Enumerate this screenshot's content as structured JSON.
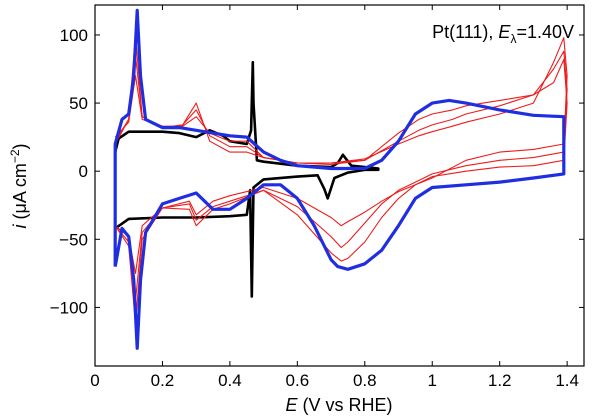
{
  "chart_data": {
    "type": "line",
    "annotation": {
      "prefix": "Pt(111), ",
      "var": "E",
      "sub": "λ",
      "value": "=1.40V"
    },
    "xlabel": {
      "var": "E",
      "rest": " (V vs RHE)"
    },
    "ylabel": {
      "var": "i",
      "rest": " (μA cm",
      "sup": "−2",
      "close": ")"
    },
    "xlim": [
      0,
      1.45
    ],
    "ylim": [
      -143,
      122
    ],
    "xticks": [
      0,
      0.2,
      0.4,
      0.6,
      0.8,
      1,
      1.2,
      1.4
    ],
    "xtick_labels": [
      "0",
      "0.2",
      "0.4",
      "0.6",
      "0.8",
      "1",
      "1.2",
      "1.4"
    ],
    "yticks": [
      -100,
      -50,
      0,
      50,
      100
    ],
    "ytick_labels": [
      "−100",
      "−50",
      "0",
      "50",
      "100"
    ],
    "colors": {
      "black": "#000000",
      "red": "#ee1c1c",
      "blue": "#1f2ee0"
    },
    "grid": false,
    "series": [
      {
        "color": "black",
        "width": 2.6,
        "points": [
          [
            0.06,
            -68
          ],
          [
            0.06,
            -42
          ],
          [
            0.1,
            -35
          ],
          [
            0.2,
            -34
          ],
          [
            0.3,
            -34
          ],
          [
            0.4,
            -33
          ],
          [
            0.45,
            -32
          ],
          [
            0.46,
            -14
          ],
          [
            0.465,
            -92
          ],
          [
            0.47,
            -12
          ],
          [
            0.5,
            -6
          ],
          [
            0.6,
            -4
          ],
          [
            0.66,
            -3
          ],
          [
            0.68,
            -13
          ],
          [
            0.69,
            -20
          ],
          [
            0.71,
            -5
          ],
          [
            0.75,
            -1
          ],
          [
            0.8,
            1
          ],
          [
            0.84,
            1
          ],
          [
            0.84,
            2
          ],
          [
            0.8,
            3
          ],
          [
            0.76,
            4
          ],
          [
            0.735,
            12
          ],
          [
            0.72,
            6
          ],
          [
            0.7,
            3
          ],
          [
            0.6,
            4
          ],
          [
            0.5,
            7
          ],
          [
            0.48,
            8
          ],
          [
            0.47,
            50
          ],
          [
            0.468,
            80
          ],
          [
            0.463,
            30
          ],
          [
            0.45,
            20
          ],
          [
            0.4,
            22
          ],
          [
            0.38,
            26
          ],
          [
            0.34,
            30
          ],
          [
            0.3,
            25
          ],
          [
            0.25,
            28
          ],
          [
            0.2,
            29
          ],
          [
            0.15,
            29
          ],
          [
            0.1,
            29
          ],
          [
            0.07,
            24
          ],
          [
            0.06,
            14
          ],
          [
            0.06,
            -68
          ]
        ]
      },
      {
        "color": "red",
        "width": 1.1,
        "points": [
          [
            0.06,
            25
          ],
          [
            0.1,
            36
          ],
          [
            0.12,
            70
          ],
          [
            0.14,
            38
          ],
          [
            0.2,
            33
          ],
          [
            0.26,
            33
          ],
          [
            0.3,
            40
          ],
          [
            0.34,
            28
          ],
          [
            0.4,
            22
          ],
          [
            0.45,
            22
          ],
          [
            0.5,
            10
          ],
          [
            0.6,
            6
          ],
          [
            0.7,
            6
          ],
          [
            0.8,
            9
          ],
          [
            0.9,
            20
          ],
          [
            0.96,
            26
          ],
          [
            1,
            29
          ],
          [
            1.06,
            33
          ],
          [
            1.1,
            36
          ],
          [
            1.2,
            42
          ],
          [
            1.3,
            50
          ],
          [
            1.36,
            80
          ],
          [
            1.39,
            98
          ],
          [
            1.4,
            70
          ],
          [
            1.39,
            20
          ],
          [
            1.3,
            16
          ],
          [
            1.2,
            14
          ],
          [
            1.1,
            8
          ],
          [
            1,
            -5
          ],
          [
            0.95,
            -10
          ],
          [
            0.9,
            -15
          ],
          [
            0.85,
            -22
          ],
          [
            0.8,
            -30
          ],
          [
            0.75,
            -37
          ],
          [
            0.73,
            -40
          ],
          [
            0.7,
            -34
          ],
          [
            0.6,
            -20
          ],
          [
            0.5,
            -12
          ],
          [
            0.4,
            -18
          ],
          [
            0.35,
            -22
          ],
          [
            0.3,
            -32
          ],
          [
            0.28,
            -22
          ],
          [
            0.2,
            -27
          ],
          [
            0.14,
            -40
          ],
          [
            0.12,
            -75
          ],
          [
            0.1,
            -48
          ],
          [
            0.06,
            -40
          ]
        ]
      },
      {
        "color": "red",
        "width": 1.1,
        "points": [
          [
            0.06,
            22
          ],
          [
            0.1,
            38
          ],
          [
            0.12,
            85
          ],
          [
            0.14,
            40
          ],
          [
            0.2,
            32
          ],
          [
            0.26,
            34
          ],
          [
            0.3,
            45
          ],
          [
            0.34,
            26
          ],
          [
            0.4,
            18
          ],
          [
            0.45,
            18
          ],
          [
            0.5,
            10
          ],
          [
            0.6,
            6
          ],
          [
            0.7,
            6
          ],
          [
            0.8,
            8
          ],
          [
            0.9,
            22
          ],
          [
            0.96,
            30
          ],
          [
            1,
            34
          ],
          [
            1.06,
            38
          ],
          [
            1.1,
            42
          ],
          [
            1.2,
            48
          ],
          [
            1.3,
            56
          ],
          [
            1.36,
            75
          ],
          [
            1.39,
            88
          ],
          [
            1.4,
            60
          ],
          [
            1.39,
            14
          ],
          [
            1.3,
            10
          ],
          [
            1.2,
            8
          ],
          [
            1.1,
            4
          ],
          [
            1,
            -2
          ],
          [
            0.95,
            -8
          ],
          [
            0.9,
            -14
          ],
          [
            0.85,
            -24
          ],
          [
            0.8,
            -38
          ],
          [
            0.75,
            -52
          ],
          [
            0.73,
            -56
          ],
          [
            0.7,
            -48
          ],
          [
            0.6,
            -26
          ],
          [
            0.5,
            -14
          ],
          [
            0.4,
            -22
          ],
          [
            0.35,
            -26
          ],
          [
            0.3,
            -36
          ],
          [
            0.28,
            -24
          ],
          [
            0.2,
            -27
          ],
          [
            0.14,
            -45
          ],
          [
            0.12,
            -95
          ],
          [
            0.1,
            -52
          ],
          [
            0.06,
            -40
          ]
        ]
      },
      {
        "color": "red",
        "width": 1.1,
        "points": [
          [
            0.06,
            20
          ],
          [
            0.1,
            38
          ],
          [
            0.12,
            100
          ],
          [
            0.14,
            40
          ],
          [
            0.2,
            32
          ],
          [
            0.26,
            34
          ],
          [
            0.3,
            50
          ],
          [
            0.34,
            22
          ],
          [
            0.4,
            14
          ],
          [
            0.45,
            14
          ],
          [
            0.5,
            10
          ],
          [
            0.6,
            6
          ],
          [
            0.7,
            5
          ],
          [
            0.8,
            8
          ],
          [
            0.9,
            28
          ],
          [
            0.96,
            38
          ],
          [
            1,
            42
          ],
          [
            1.06,
            45
          ],
          [
            1.1,
            48
          ],
          [
            1.2,
            52
          ],
          [
            1.3,
            56
          ],
          [
            1.36,
            65
          ],
          [
            1.39,
            82
          ],
          [
            1.4,
            50
          ],
          [
            1.39,
            8
          ],
          [
            1.3,
            4
          ],
          [
            1.2,
            3
          ],
          [
            1.1,
            0
          ],
          [
            1,
            -4
          ],
          [
            0.95,
            -10
          ],
          [
            0.9,
            -20
          ],
          [
            0.85,
            -34
          ],
          [
            0.8,
            -52
          ],
          [
            0.75,
            -64
          ],
          [
            0.73,
            -66
          ],
          [
            0.7,
            -60
          ],
          [
            0.6,
            -32
          ],
          [
            0.5,
            -14
          ],
          [
            0.4,
            -24
          ],
          [
            0.35,
            -28
          ],
          [
            0.3,
            -40
          ],
          [
            0.28,
            -28
          ],
          [
            0.2,
            -27
          ],
          [
            0.14,
            -50
          ],
          [
            0.12,
            -112
          ],
          [
            0.1,
            -55
          ],
          [
            0.06,
            -40
          ]
        ]
      },
      {
        "color": "blue",
        "width": 3.2,
        "points": [
          [
            0.06,
            -70
          ],
          [
            0.06,
            20
          ],
          [
            0.08,
            38
          ],
          [
            0.1,
            42
          ],
          [
            0.115,
            70
          ],
          [
            0.125,
            118
          ],
          [
            0.135,
            70
          ],
          [
            0.15,
            38
          ],
          [
            0.2,
            32
          ],
          [
            0.25,
            32
          ],
          [
            0.3,
            30
          ],
          [
            0.35,
            28
          ],
          [
            0.4,
            26
          ],
          [
            0.45,
            25
          ],
          [
            0.5,
            14
          ],
          [
            0.55,
            8
          ],
          [
            0.6,
            4
          ],
          [
            0.7,
            2
          ],
          [
            0.8,
            2
          ],
          [
            0.85,
            8
          ],
          [
            0.9,
            22
          ],
          [
            0.95,
            42
          ],
          [
            1,
            50
          ],
          [
            1.05,
            52
          ],
          [
            1.1,
            50
          ],
          [
            1.2,
            45
          ],
          [
            1.3,
            41
          ],
          [
            1.39,
            40
          ],
          [
            1.39,
            -2
          ],
          [
            1.3,
            -5
          ],
          [
            1.2,
            -8
          ],
          [
            1.1,
            -10
          ],
          [
            1,
            -12
          ],
          [
            0.95,
            -20
          ],
          [
            0.9,
            -40
          ],
          [
            0.85,
            -58
          ],
          [
            0.8,
            -68
          ],
          [
            0.75,
            -72
          ],
          [
            0.72,
            -70
          ],
          [
            0.7,
            -65
          ],
          [
            0.65,
            -40
          ],
          [
            0.6,
            -20
          ],
          [
            0.55,
            -10
          ],
          [
            0.5,
            -10
          ],
          [
            0.45,
            -20
          ],
          [
            0.4,
            -28
          ],
          [
            0.35,
            -28
          ],
          [
            0.3,
            -16
          ],
          [
            0.25,
            -20
          ],
          [
            0.2,
            -24
          ],
          [
            0.15,
            -45
          ],
          [
            0.135,
            -80
          ],
          [
            0.125,
            -130
          ],
          [
            0.115,
            -80
          ],
          [
            0.1,
            -48
          ],
          [
            0.08,
            -42
          ],
          [
            0.06,
            -70
          ]
        ]
      }
    ]
  }
}
